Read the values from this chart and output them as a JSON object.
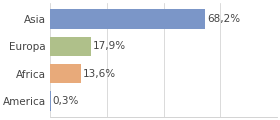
{
  "categories": [
    "Asia",
    "Europa",
    "Africa",
    "America"
  ],
  "values": [
    68.2,
    17.9,
    13.6,
    0.3
  ],
  "bar_colors": [
    "#7b96c8",
    "#afc08a",
    "#e8aa7a",
    "#7b96c8"
  ],
  "labels": [
    "68,2%",
    "17,9%",
    "13,6%",
    "0,3%"
  ],
  "xlim": [
    0,
    100
  ],
  "background_color": "#ffffff",
  "label_fontsize": 7.5,
  "category_fontsize": 7.5,
  "bar_height": 0.72,
  "label_color": "#444444",
  "spine_color": "#cccccc"
}
